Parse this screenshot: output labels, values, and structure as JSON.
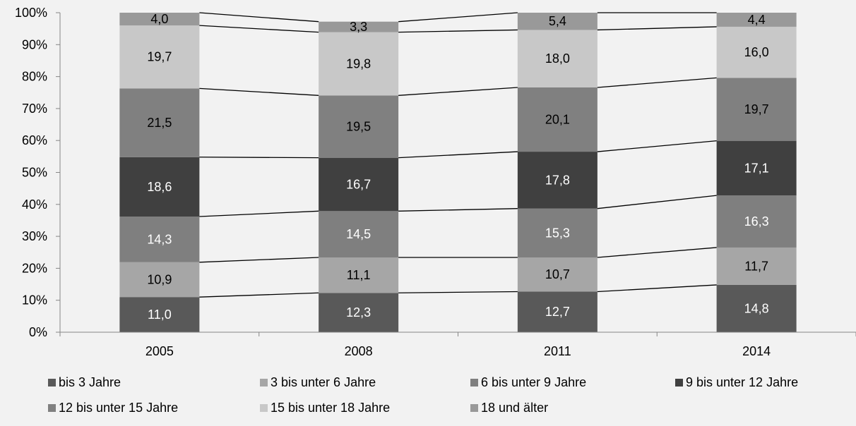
{
  "chart_data": {
    "type": "bar",
    "stacked": true,
    "percent": true,
    "categories": [
      "2005",
      "2008",
      "2011",
      "2014"
    ],
    "ylim": [
      0,
      100
    ],
    "yticks": [
      "0%",
      "10%",
      "20%",
      "30%",
      "40%",
      "50%",
      "60%",
      "70%",
      "80%",
      "90%",
      "100%"
    ],
    "grid": false,
    "series_lines": true,
    "legend_position": "bottom",
    "series": [
      {
        "name": "bis 3 Jahre",
        "color": "#595959",
        "label_color": "#ffffff",
        "values": [
          11.0,
          12.3,
          12.7,
          14.8
        ],
        "labels": [
          "11,0",
          "12,3",
          "12,7",
          "14,8"
        ]
      },
      {
        "name": "3 bis unter 6 Jahre",
        "color": "#a6a6a6",
        "label_color": "#000000",
        "values": [
          10.9,
          11.1,
          10.7,
          11.7
        ],
        "labels": [
          "10,9",
          "11,1",
          "10,7",
          "11,7"
        ]
      },
      {
        "name": "6 bis unter 9 Jahre",
        "color": "#7f7f7f",
        "label_color": "#ffffff",
        "values": [
          14.3,
          14.5,
          15.3,
          16.3
        ],
        "labels": [
          "14,3",
          "14,5",
          "15,3",
          "16,3"
        ]
      },
      {
        "name": "9 bis unter 12 Jahre",
        "color": "#404040",
        "label_color": "#ffffff",
        "values": [
          18.6,
          16.7,
          17.8,
          17.1
        ],
        "labels": [
          "18,6",
          "16,7",
          "17,8",
          "17,1"
        ]
      },
      {
        "name": "12 bis unter 15 Jahre",
        "color": "#808080",
        "label_color": "#000000",
        "values": [
          21.5,
          19.5,
          20.1,
          19.7
        ],
        "labels": [
          "21,5",
          "19,5",
          "20,1",
          "19,7"
        ]
      },
      {
        "name": "15 bis unter 18 Jahre",
        "color": "#c8c8c8",
        "label_color": "#000000",
        "values": [
          19.7,
          19.8,
          18.0,
          16.0
        ],
        "labels": [
          "19,7",
          "19,8",
          "18,0",
          "16,0"
        ]
      },
      {
        "name": "18 und älter",
        "color": "#999999",
        "label_color": "#000000",
        "values": [
          4.0,
          3.3,
          5.4,
          4.4
        ],
        "labels": [
          "4,0",
          "3,3",
          "5,4",
          "4,4"
        ]
      }
    ]
  }
}
